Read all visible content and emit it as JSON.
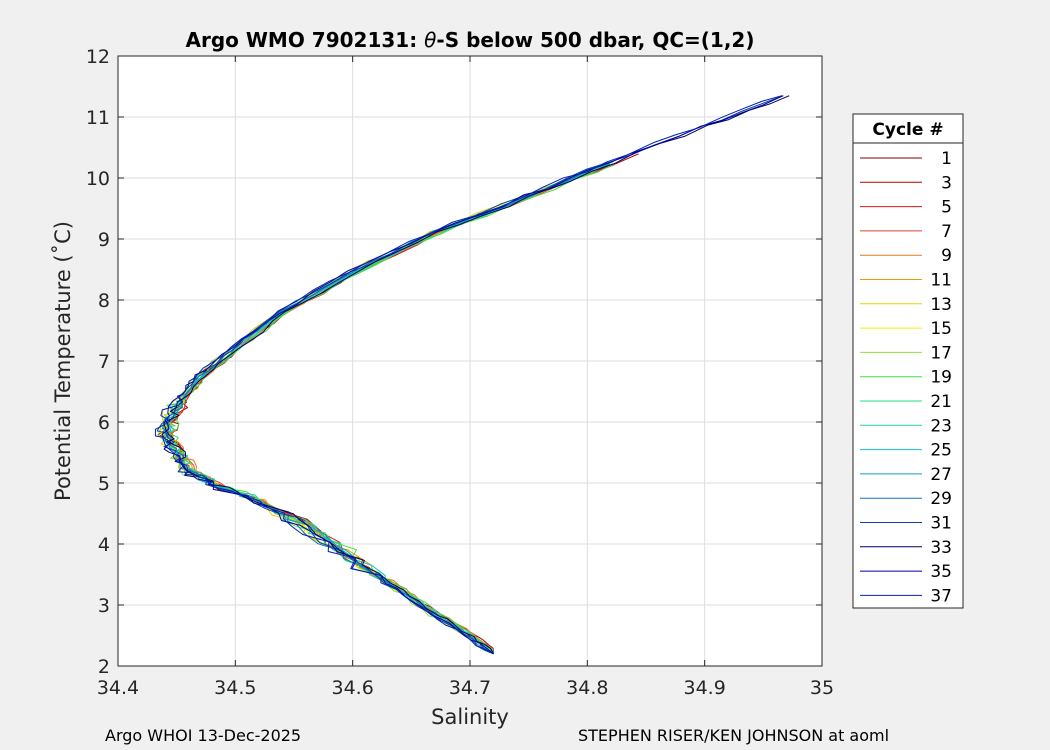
{
  "chart_data": {
    "type": "line",
    "title_prefix": "Argo WMO 7902131: ",
    "title_theta": "θ",
    "title_suffix": "-S below 500 dbar,  QC=(1,2)",
    "xlabel": "Salinity",
    "ylabel": "Potential Temperature (˚C)",
    "xlim": [
      34.4,
      35.0
    ],
    "ylim": [
      2,
      12
    ],
    "xticks": [
      "34.4",
      "34.5",
      "34.6",
      "34.7",
      "34.8",
      "34.9",
      "35"
    ],
    "yticks": [
      "2",
      "3",
      "4",
      "5",
      "6",
      "7",
      "8",
      "9",
      "10",
      "11",
      "12"
    ],
    "grid": true,
    "legend": {
      "title": "Cycle #",
      "position": "right",
      "entries": [
        "1",
        "3",
        "5",
        "7",
        "9",
        "11",
        "13",
        "15",
        "17",
        "19",
        "21",
        "23",
        "25",
        "27",
        "29",
        "31",
        "33",
        "35",
        "37"
      ],
      "colors": [
        "#800000",
        "#b30000",
        "#d41a1a",
        "#d9472e",
        "#e07a1f",
        "#e0a000",
        "#e6d000",
        "#f0f000",
        "#90e040",
        "#40e040",
        "#20e080",
        "#20d0b0",
        "#10c0d0",
        "#10a0c0",
        "#1070c0",
        "#1040a0",
        "#000060",
        "#0000a0",
        "#0020c0"
      ]
    },
    "mean_profile": {
      "salinity": [
        34.72,
        34.7,
        34.67,
        34.64,
        34.6,
        34.56,
        34.52,
        34.48,
        34.46,
        34.45,
        34.44,
        34.445,
        34.455,
        34.47,
        34.5,
        34.54,
        34.6,
        34.67,
        34.75,
        34.82,
        34.9,
        34.97
      ],
      "theta": [
        2.2,
        2.5,
        2.85,
        3.25,
        3.75,
        4.3,
        4.7,
        5.0,
        5.2,
        5.5,
        5.8,
        6.1,
        6.4,
        6.75,
        7.2,
        7.8,
        8.45,
        9.1,
        9.7,
        10.25,
        10.85,
        11.35
      ]
    }
  },
  "footer": {
    "left": "Argo WHOI 13-Dec-2025",
    "right": "STEPHEN RISER/KEN JOHNSON at aoml"
  }
}
